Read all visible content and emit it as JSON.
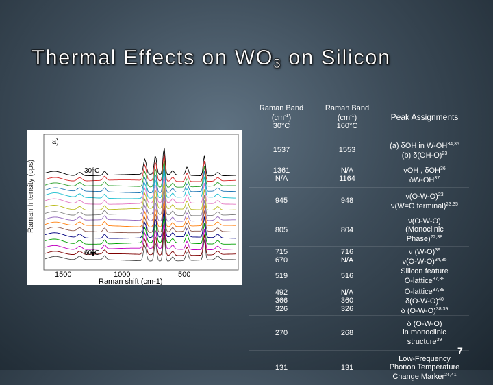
{
  "title": {
    "main": "Thermal Effects on WO",
    "sub": "3",
    "rest": " on Silicon"
  },
  "figure": {
    "panel_label": "a)",
    "ylabel": "Raman Intensity (cps)",
    "xlabel": "Raman shift (cm-1)",
    "x_ticks": [
      "1500",
      "1000",
      "500"
    ],
    "temp_top": "30°C",
    "temp_bottom": "60°C",
    "colors": [
      "#000000",
      "#d62728",
      "#2ca02c",
      "#1f77b4",
      "#17becf",
      "#e377c2",
      "#bcbd22",
      "#7f7f7f",
      "#9467bd",
      "#ff7f0e",
      "#8c564b",
      "#000080",
      "#00a000",
      "#c000c0",
      "#7f0000",
      "#4d4d4d"
    ]
  },
  "table": {
    "headers": {
      "col1": [
        "Raman Band",
        "(cm",
        "-1",
        ")",
        "30°C"
      ],
      "col2": [
        "Raman Band",
        "(cm",
        "-1",
        ")",
        "160°C"
      ],
      "col3": "Peak Assignments"
    },
    "rows": [
      {
        "c1": [
          "1537"
        ],
        "c2": [
          "1553"
        ],
        "c3": [
          [
            "(a) δOH in W-OH",
            "34,35"
          ],
          [
            "(b) δ(OH-O)",
            "23"
          ]
        ]
      },
      {
        "c1": [
          "1361",
          "N/A"
        ],
        "c2": [
          "N/A",
          "1164"
        ],
        "c3": [
          [
            "νOH , δOH",
            "36"
          ],
          [
            "δW-OH",
            "37"
          ]
        ]
      },
      {
        "c1": [
          "945"
        ],
        "c2": [
          "948"
        ],
        "c3": [
          [
            "ν(O-W-O)",
            "23"
          ],
          [
            "ν(W=O terminal)",
            "23,35"
          ]
        ]
      },
      {
        "c1": [
          "805"
        ],
        "c2": [
          "804"
        ],
        "c3": [
          [
            "ν(O-W-O)",
            ""
          ],
          [
            "(Monoclinic",
            ""
          ],
          [
            "Phase)",
            "22,38"
          ]
        ]
      },
      {
        "c1": [
          "715",
          "670"
        ],
        "c2": [
          "716",
          "N/A"
        ],
        "c3": [
          [
            "ν (W-O)",
            "39"
          ],
          [
            "ν(O-W-O)",
            "34,35"
          ]
        ]
      },
      {
        "c1": [
          "519"
        ],
        "c2": [
          "516"
        ],
        "c3": [
          [
            "Silicon feature",
            ""
          ],
          [
            "O-lattice",
            "37,39"
          ]
        ]
      },
      {
        "c1": [
          "492",
          "366",
          "326"
        ],
        "c2": [
          "N/A",
          "360",
          "326"
        ],
        "c3": [
          [
            "O-lattice",
            "37,39"
          ],
          [
            "δ(O-W-O)",
            "40"
          ],
          [
            "δ (O-W-O)",
            "38,39"
          ]
        ]
      },
      {
        "c1": [
          "270"
        ],
        "c2": [
          "268"
        ],
        "c3": [
          [
            "δ (O-W-O)",
            ""
          ],
          [
            "in monoclinic",
            ""
          ],
          [
            "structure",
            "39"
          ]
        ]
      },
      {
        "c1": [
          "131"
        ],
        "c2": [
          "131"
        ],
        "c3": [
          [
            "Low-Frequency",
            ""
          ],
          [
            "Phonon Temperature",
            ""
          ],
          [
            "Change Marker",
            "24,41"
          ]
        ]
      }
    ]
  },
  "page_number": "7"
}
